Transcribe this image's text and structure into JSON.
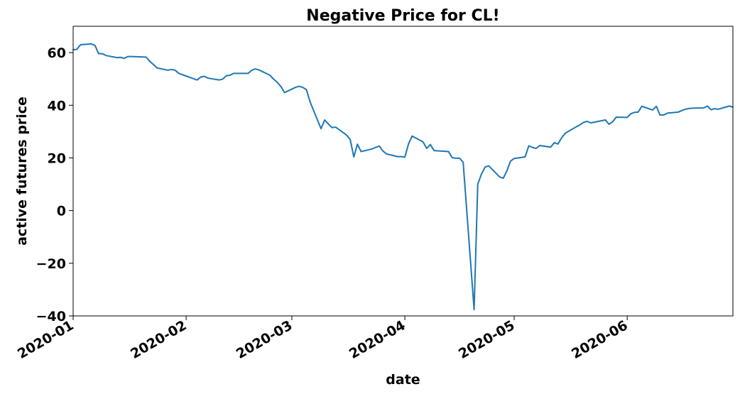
{
  "chart_data": {
    "type": "line",
    "title": "Negative Price for CL!",
    "xlabel": "date",
    "ylabel": "active futures price",
    "xlim": [
      "2020-01-01",
      "2020-06-30"
    ],
    "ylim": [
      -40,
      70
    ],
    "grid": false,
    "legend": "none",
    "line_color": "#1f77b4",
    "x_ticks": [
      {
        "date": "2020-01-01",
        "label": "2020-01"
      },
      {
        "date": "2020-02-01",
        "label": "2020-02"
      },
      {
        "date": "2020-03-01",
        "label": "2020-03"
      },
      {
        "date": "2020-04-01",
        "label": "2020-04"
      },
      {
        "date": "2020-05-01",
        "label": "2020-05"
      },
      {
        "date": "2020-06-01",
        "label": "2020-06"
      }
    ],
    "y_ticks": [
      {
        "value": 60,
        "label": "60"
      },
      {
        "value": 40,
        "label": "40"
      },
      {
        "value": 20,
        "label": "20"
      },
      {
        "value": 0,
        "label": "0"
      },
      {
        "value": -20,
        "label": "−20"
      },
      {
        "value": -40,
        "label": "−40"
      }
    ],
    "series": [
      {
        "x": [
          "2020-01-01",
          "2020-01-02",
          "2020-01-03",
          "2020-01-06",
          "2020-01-07",
          "2020-01-08",
          "2020-01-09",
          "2020-01-10",
          "2020-01-13",
          "2020-01-14",
          "2020-01-15",
          "2020-01-16",
          "2020-01-17",
          "2020-01-21",
          "2020-01-22",
          "2020-01-23",
          "2020-01-24",
          "2020-01-27",
          "2020-01-28",
          "2020-01-29",
          "2020-01-30",
          "2020-01-31",
          "2020-02-03",
          "2020-02-04",
          "2020-02-05",
          "2020-02-06",
          "2020-02-07",
          "2020-02-10",
          "2020-02-11",
          "2020-02-12",
          "2020-02-13",
          "2020-02-14",
          "2020-02-18",
          "2020-02-19",
          "2020-02-20",
          "2020-02-21",
          "2020-02-24",
          "2020-02-25",
          "2020-02-26",
          "2020-02-27",
          "2020-02-28",
          "2020-03-02",
          "2020-03-03",
          "2020-03-04",
          "2020-03-05",
          "2020-03-06",
          "2020-03-09",
          "2020-03-10",
          "2020-03-11",
          "2020-03-12",
          "2020-03-13",
          "2020-03-16",
          "2020-03-17",
          "2020-03-18",
          "2020-03-19",
          "2020-03-20",
          "2020-03-23",
          "2020-03-24",
          "2020-03-25",
          "2020-03-26",
          "2020-03-27",
          "2020-03-30",
          "2020-03-31",
          "2020-04-01",
          "2020-04-02",
          "2020-04-03",
          "2020-04-06",
          "2020-04-07",
          "2020-04-08",
          "2020-04-09",
          "2020-04-13",
          "2020-04-14",
          "2020-04-15",
          "2020-04-16",
          "2020-04-17",
          "2020-04-20",
          "2020-04-21",
          "2020-04-22",
          "2020-04-23",
          "2020-04-24",
          "2020-04-27",
          "2020-04-28",
          "2020-04-29",
          "2020-04-30",
          "2020-05-01",
          "2020-05-04",
          "2020-05-05",
          "2020-05-06",
          "2020-05-07",
          "2020-05-08",
          "2020-05-11",
          "2020-05-12",
          "2020-05-13",
          "2020-05-14",
          "2020-05-15",
          "2020-05-18",
          "2020-05-19",
          "2020-05-20",
          "2020-05-21",
          "2020-05-22",
          "2020-05-26",
          "2020-05-27",
          "2020-05-28",
          "2020-05-29",
          "2020-06-01",
          "2020-06-02",
          "2020-06-03",
          "2020-06-04",
          "2020-06-05",
          "2020-06-08",
          "2020-06-09",
          "2020-06-10",
          "2020-06-11",
          "2020-06-12",
          "2020-06-15",
          "2020-06-16",
          "2020-06-17",
          "2020-06-18",
          "2020-06-19",
          "2020-06-22",
          "2020-06-23",
          "2020-06-24",
          "2020-06-25",
          "2020-06-26",
          "2020-06-29",
          "2020-06-30"
        ],
        "y": [
          61.1,
          61.2,
          63.0,
          63.3,
          62.7,
          59.6,
          59.6,
          58.9,
          58.1,
          58.2,
          57.8,
          58.5,
          58.5,
          58.3,
          56.7,
          55.5,
          54.2,
          53.3,
          53.6,
          53.3,
          52.1,
          51.6,
          50.1,
          49.6,
          50.7,
          51.0,
          50.3,
          49.6,
          49.9,
          51.2,
          51.4,
          52.1,
          52.1,
          53.3,
          53.8,
          53.4,
          51.4,
          49.9,
          48.7,
          47.1,
          44.8,
          46.8,
          47.2,
          46.8,
          45.9,
          41.3,
          31.1,
          34.4,
          32.9,
          31.5,
          31.7,
          28.7,
          27.0,
          20.4,
          25.2,
          22.4,
          23.4,
          24.0,
          24.5,
          22.6,
          21.5,
          20.5,
          20.5,
          20.3,
          25.3,
          28.3,
          26.1,
          23.6,
          25.1,
          22.8,
          22.4,
          20.1,
          19.9,
          19.9,
          18.3,
          -37.6,
          10.0,
          13.8,
          16.5,
          17.0,
          12.8,
          12.3,
          15.1,
          18.8,
          19.8,
          20.4,
          24.6,
          24.0,
          23.6,
          24.7,
          24.1,
          25.8,
          25.3,
          27.6,
          29.4,
          31.8,
          32.5,
          33.5,
          33.9,
          33.3,
          34.4,
          32.8,
          33.7,
          35.5,
          35.4,
          36.8,
          37.3,
          37.4,
          39.6,
          38.2,
          39.6,
          36.3,
          36.3,
          37.0,
          37.4,
          38.0,
          38.5,
          38.8,
          38.9,
          39.0,
          39.7,
          38.3,
          38.7,
          38.5,
          39.7,
          39.3
        ]
      }
    ]
  }
}
